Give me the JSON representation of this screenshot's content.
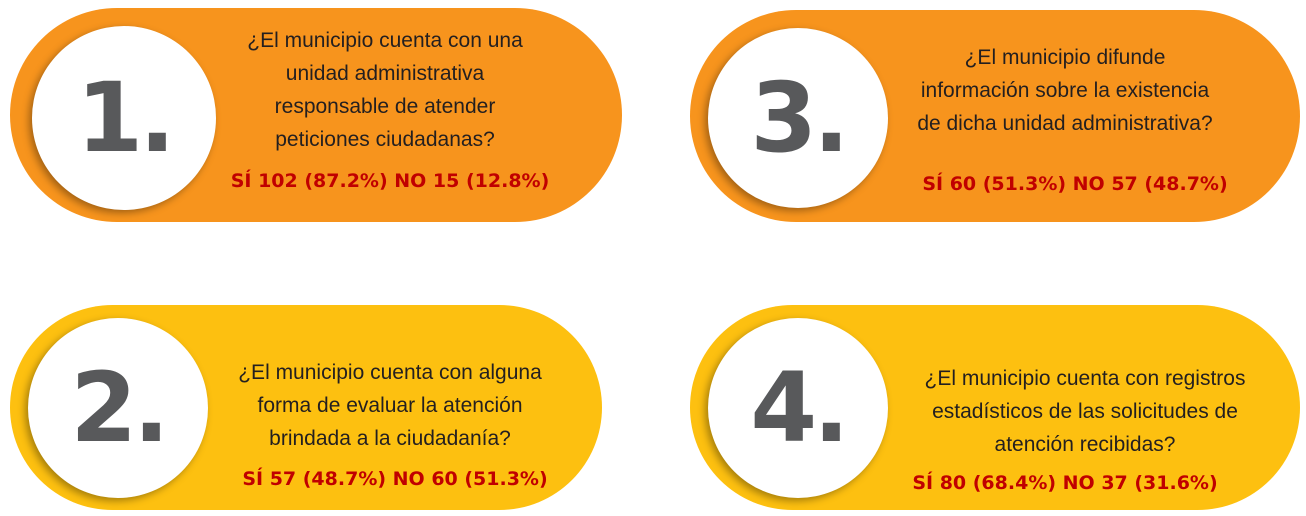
{
  "cards": [
    {
      "number": "1.",
      "question": [
        "¿El municipio cuenta con una",
        "unidad administrativa",
        "responsable de atender",
        "peticiones ciudadanas?"
      ],
      "answer": "SÍ 102 (87.2%) NO 15 (12.8%)"
    },
    {
      "number": "3.",
      "question": [
        "¿El municipio difunde",
        "información sobre la existencia",
        "de dicha unidad administrativa?"
      ],
      "answer": "SÍ 60 (51.3%) NO 57 (48.7%)"
    },
    {
      "number": "2.",
      "question": [
        "¿El municipio cuenta con alguna",
        "forma de evaluar la atención",
        "brindada a la ciudadanía?"
      ],
      "answer": "SÍ 57 (48.7%) NO 60 (51.3%)"
    },
    {
      "number": "4.",
      "question": [
        "¿El municipio cuenta con registros",
        "estadísticos de las solicitudes de",
        "atención recibidas?"
      ],
      "answer": "SÍ 80 (68.4%) NO 37 (31.6%)"
    }
  ]
}
